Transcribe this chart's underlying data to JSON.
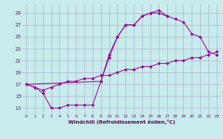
{
  "background_color": "#c8ecec",
  "grid_color": "#aaaacc",
  "line_color": "#990099",
  "xlabel": "Windchill (Refroidissement éolien,°C)",
  "ylim": [
    12.0,
    30.5
  ],
  "yticks": [
    13,
    15,
    17,
    19,
    21,
    23,
    25,
    27,
    29
  ],
  "xlim": [
    -0.5,
    23.5
  ],
  "xticks": [
    0,
    1,
    2,
    3,
    4,
    5,
    6,
    7,
    8,
    9,
    10,
    11,
    12,
    13,
    14,
    15,
    16,
    17,
    18,
    19,
    20,
    21,
    22,
    23
  ],
  "line1_x": [
    0,
    1,
    2,
    3,
    4,
    5,
    6,
    7,
    8,
    9,
    10,
    11,
    12,
    13,
    14,
    15,
    16,
    17
  ],
  "line1_y": [
    17.0,
    16.5,
    15.5,
    13.0,
    13.0,
    13.5,
    13.5,
    13.5,
    13.5,
    17.5,
    22.0,
    25.0,
    27.0,
    27.0,
    28.5,
    29.0,
    29.5,
    28.5
  ],
  "line2_x": [
    0,
    9,
    10,
    11,
    12,
    13,
    14,
    15,
    16,
    17,
    18,
    19,
    20,
    21,
    22,
    23
  ],
  "line2_y": [
    17.0,
    17.5,
    21.5,
    25.0,
    27.0,
    27.0,
    28.5,
    29.0,
    29.0,
    28.5,
    28.0,
    27.5,
    25.5,
    25.0,
    22.5,
    22.0
  ],
  "line3_x": [
    0,
    1,
    2,
    3,
    4,
    5,
    6,
    7,
    8,
    9,
    10,
    11,
    12,
    13,
    14,
    15,
    16,
    17,
    18,
    19,
    20,
    21,
    22,
    23
  ],
  "line3_y": [
    17.0,
    16.5,
    16.0,
    16.5,
    17.0,
    17.5,
    17.5,
    18.0,
    18.0,
    18.5,
    18.5,
    19.0,
    19.5,
    19.5,
    20.0,
    20.0,
    20.5,
    20.5,
    21.0,
    21.0,
    21.5,
    21.5,
    22.0,
    22.5
  ],
  "markersize": 2.5
}
